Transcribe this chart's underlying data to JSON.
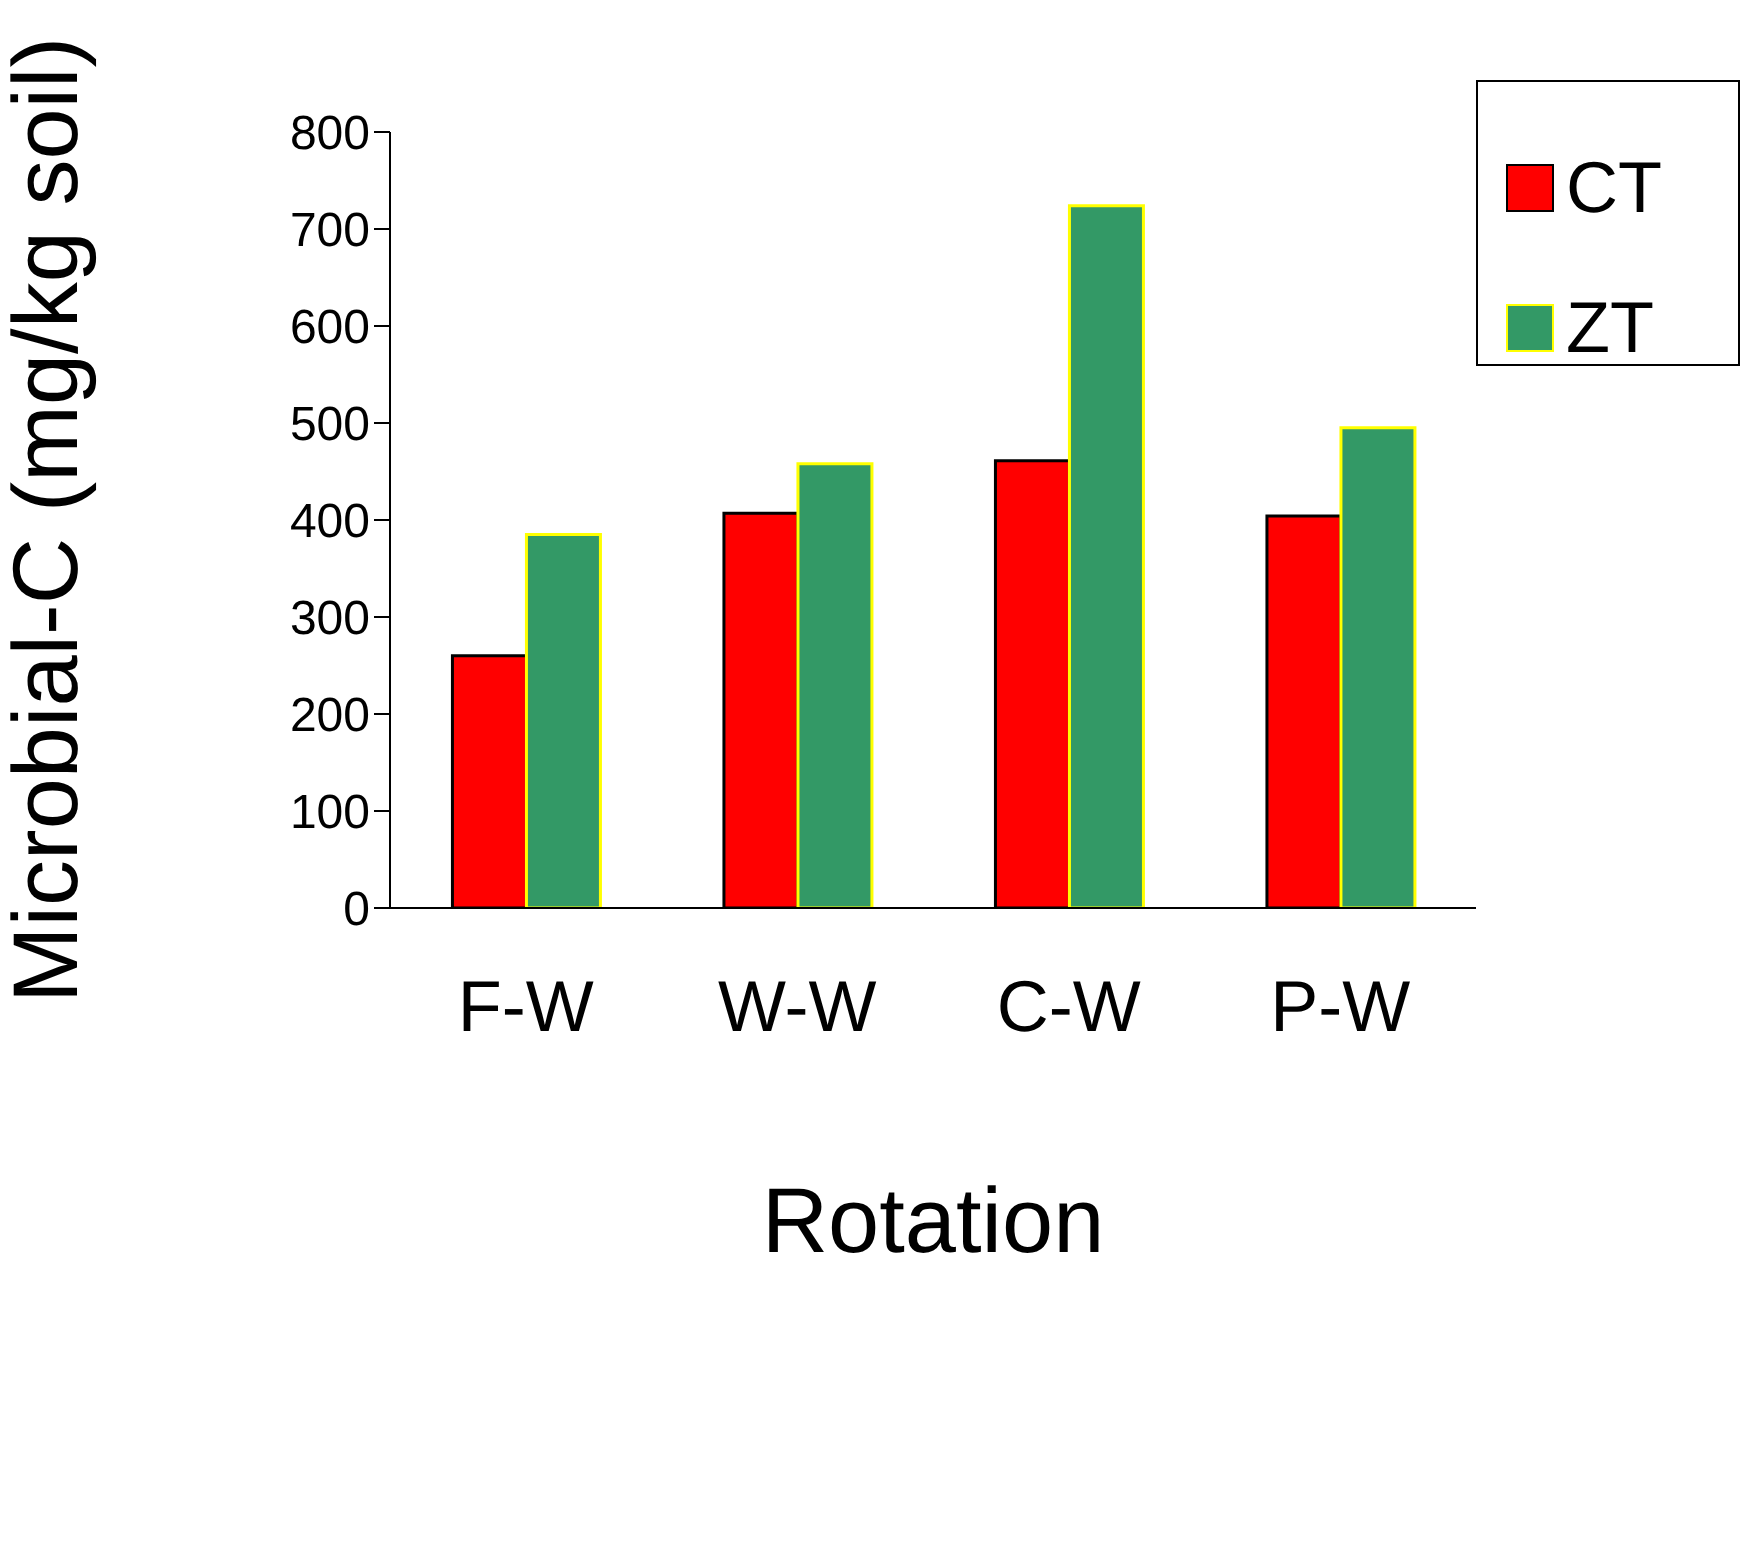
{
  "chart_data": {
    "type": "bar",
    "xlabel": "Rotation",
    "ylabel": "Microbial-C (mg/kg soil)",
    "categories": [
      "F-W",
      "W-W",
      "C-W",
      "P-W"
    ],
    "series": [
      {
        "name": "CT",
        "color": "#ff0000",
        "values": [
          260,
          407,
          461,
          404
        ]
      },
      {
        "name": "ZT",
        "color": "#339966",
        "values": [
          385,
          458,
          724,
          495
        ]
      }
    ],
    "ylim": [
      0,
      800
    ],
    "yticks": [
      0,
      100,
      200,
      300,
      400,
      500,
      600,
      700,
      800
    ],
    "grid": false,
    "legend": "top right"
  }
}
